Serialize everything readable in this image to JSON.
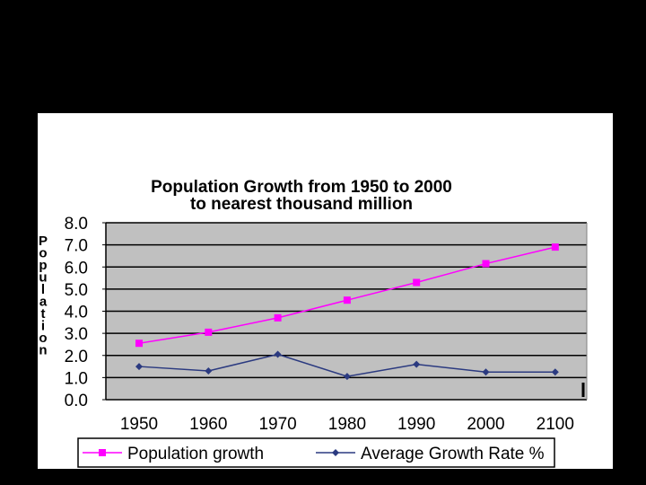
{
  "chart_data": {
    "type": "line",
    "title": "Population Growth from 1950 to 2000",
    "subtitle": "to nearest thousand million",
    "xlabel": "",
    "ylabel": "Population",
    "categories": [
      "1950",
      "1960",
      "1970",
      "1980",
      "1990",
      "2000",
      "2100"
    ],
    "ylim": [
      0,
      8
    ],
    "yticks": [
      "0.0",
      "1.0",
      "2.0",
      "3.0",
      "4.0",
      "5.0",
      "6.0",
      "7.0",
      "8.0"
    ],
    "grid": true,
    "legend_position": "bottom",
    "series": [
      {
        "name": "Population growth",
        "values": [
          2.55,
          3.05,
          3.7,
          4.5,
          5.3,
          6.15,
          6.9
        ],
        "color": "#ff00ff",
        "marker": "square"
      },
      {
        "name": "Average Growth Rate %",
        "values": [
          1.5,
          1.3,
          2.05,
          1.05,
          1.6,
          1.25,
          1.25
        ],
        "color": "#2b3a80",
        "marker": "diamond"
      }
    ],
    "plot_background": "#c0c0c0"
  }
}
